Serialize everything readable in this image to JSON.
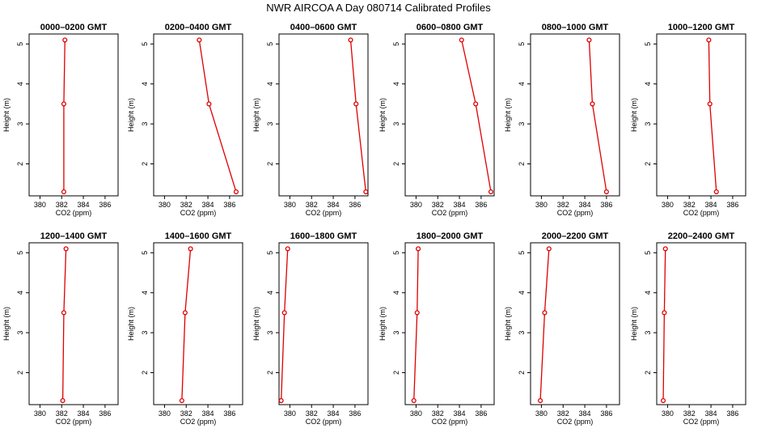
{
  "title": "NWR AIRCOA A  Day 080714  Calibrated Profiles",
  "chart_data": {
    "type": "line",
    "xlabel": "CO2 (ppm)",
    "ylabel": "Height (m)",
    "xlim": [
      379,
      387.2
    ],
    "ylim": [
      1.2,
      5.25
    ],
    "xticks": [
      380,
      382,
      384,
      386
    ],
    "yticks": [
      2,
      3,
      4,
      5
    ],
    "series_color": "#dd0000",
    "heights": [
      5.1,
      3.5,
      1.3
    ],
    "panels": [
      {
        "title": "0000–0200 GMT",
        "values": [
          382.3,
          382.2,
          382.2
        ]
      },
      {
        "title": "0200–0400 GMT",
        "values": [
          383.2,
          384.1,
          386.6
        ]
      },
      {
        "title": "0400–0600 GMT",
        "values": [
          385.6,
          386.1,
          387.0
        ]
      },
      {
        "title": "0600–0800 GMT",
        "values": [
          384.2,
          385.5,
          386.9
        ]
      },
      {
        "title": "0800–1000 GMT",
        "values": [
          384.4,
          384.7,
          386.0
        ]
      },
      {
        "title": "1000–1200 GMT",
        "values": [
          383.8,
          383.9,
          384.5
        ]
      },
      {
        "title": "1200–1400 GMT",
        "values": [
          382.4,
          382.2,
          382.1
        ]
      },
      {
        "title": "1400–1600 GMT",
        "values": [
          382.4,
          381.9,
          381.6
        ]
      },
      {
        "title": "1600–1800 GMT",
        "values": [
          379.8,
          379.5,
          379.2
        ]
      },
      {
        "title": "1800–2000 GMT",
        "values": [
          380.2,
          380.1,
          379.8
        ]
      },
      {
        "title": "2000–2200 GMT",
        "values": [
          380.7,
          380.3,
          379.9
        ]
      },
      {
        "title": "2200–2400 GMT",
        "values": [
          379.8,
          379.7,
          379.6
        ]
      }
    ]
  }
}
